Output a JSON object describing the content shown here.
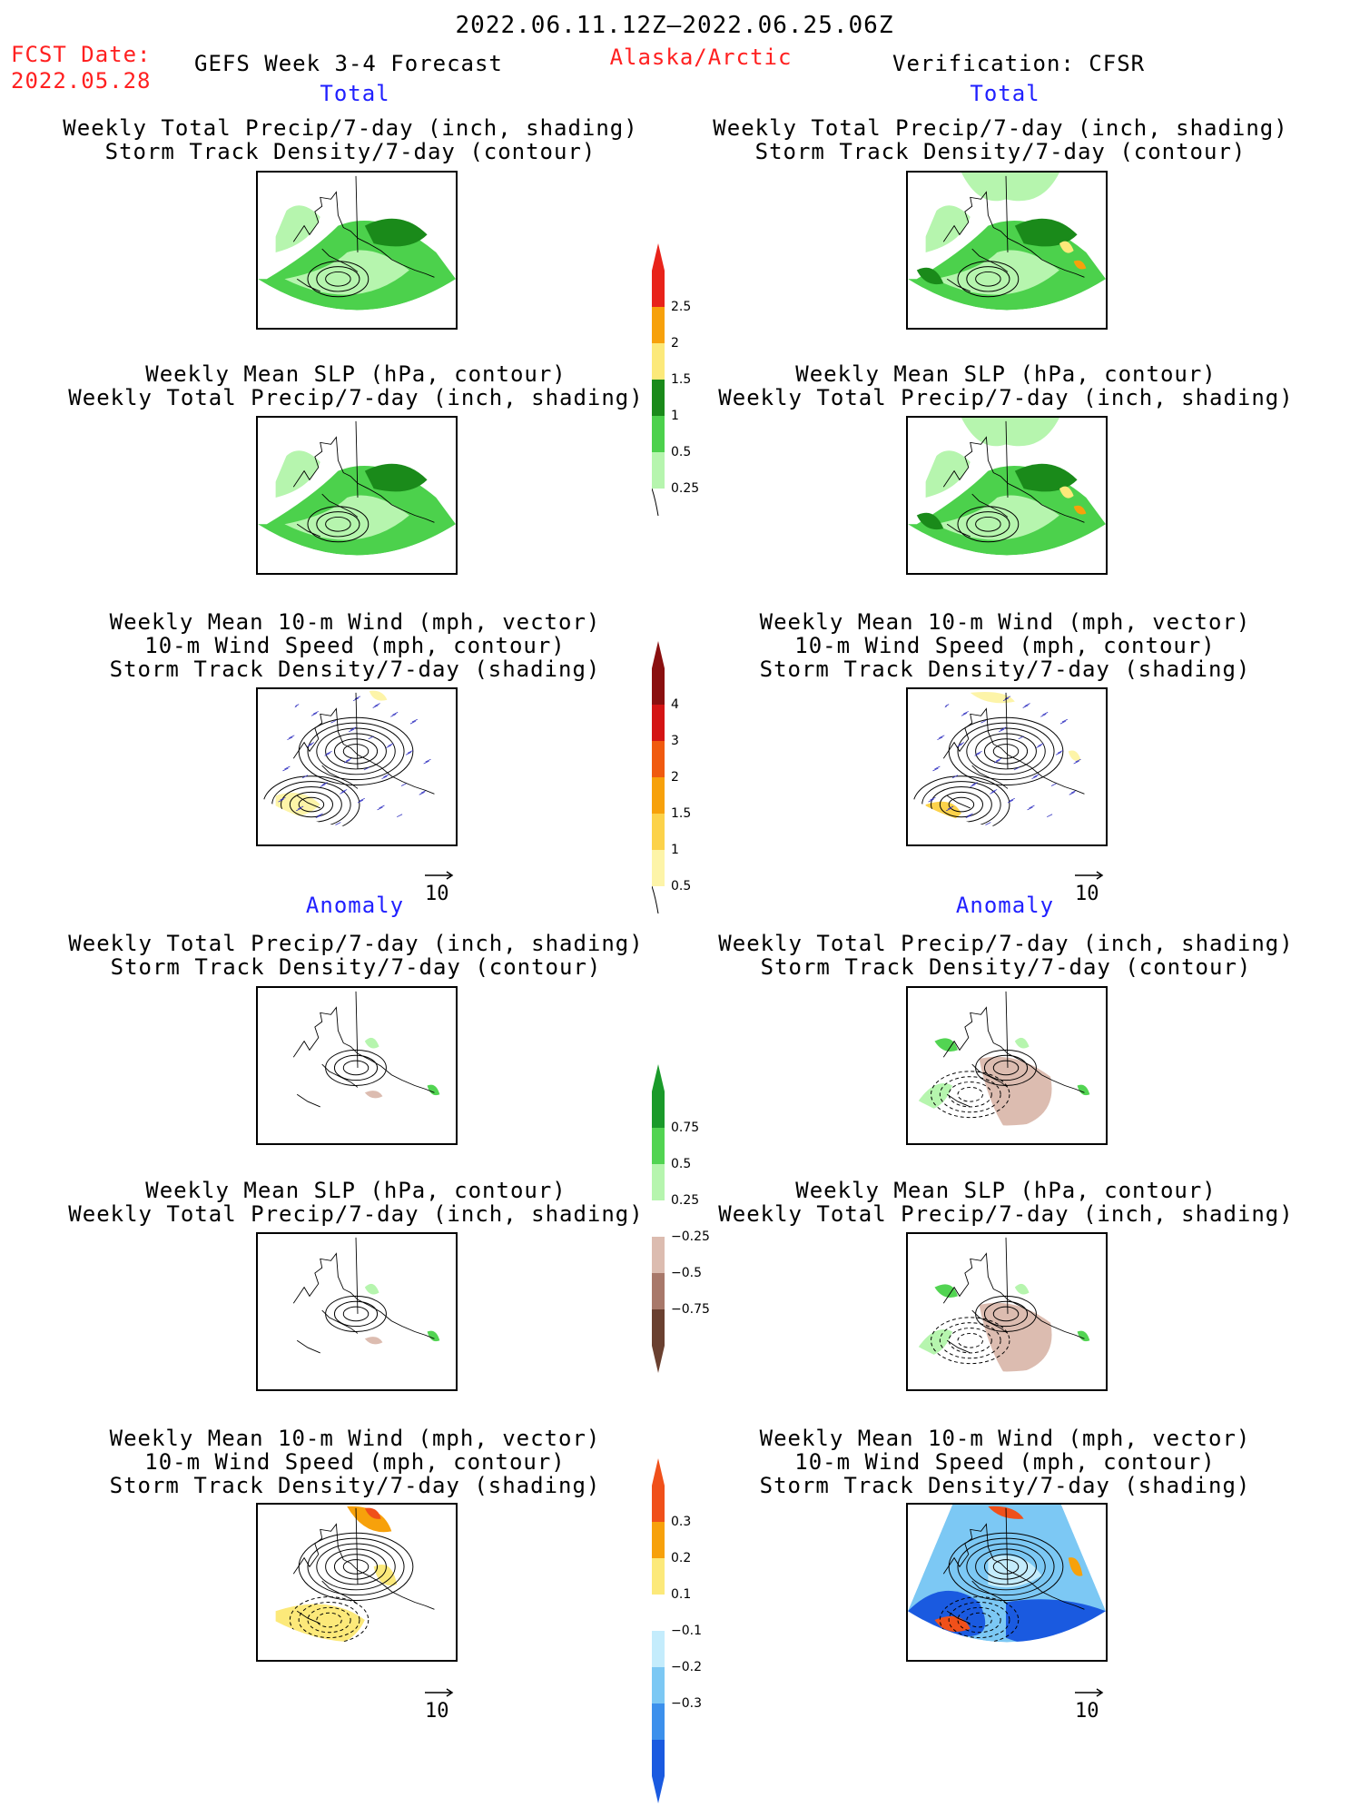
{
  "header": {
    "date_range": "2022.06.11.12Z–2022.06.25.06Z",
    "fcst_label": "FCST Date:",
    "fcst_date": "2022.05.28",
    "model": "GEFS Week 3-4 Forecast",
    "region": "Alaska/Arctic",
    "verification": "Verification: CFSR"
  },
  "sections": {
    "total": "Total",
    "anomaly": "Anomaly"
  },
  "titles": {
    "precip_track": [
      "Weekly Total Precip/7-day (inch, shading)",
      "Storm Track Density/7-day (contour)"
    ],
    "slp_precip": [
      "Weekly Mean SLP (hPa, contour)",
      "Weekly Total Precip/7-day (inch, shading)"
    ],
    "wind": [
      "Weekly Mean 10-m Wind (mph, vector)",
      "10-m Wind Speed (mph, contour)",
      "Storm Track Density/7-day (shading)"
    ]
  },
  "vector_ref": "10",
  "colorbars": {
    "precip_total": {
      "ticks": [
        "2.5",
        "2",
        "1.5",
        "1",
        "0.5",
        "0.25"
      ],
      "colors": [
        "#e8231a",
        "#f7a10b",
        "#fce97a",
        "#1a8a1a",
        "#4cd14c",
        "#b6f5ae"
      ]
    },
    "storm_total": {
      "ticks": [
        "4",
        "3",
        "2",
        "1.5",
        "1",
        "0.5"
      ],
      "colors": [
        "#8a0f0f",
        "#d41414",
        "#f05a0f",
        "#f7a10b",
        "#fcd24a",
        "#fdf4a8"
      ]
    },
    "precip_anom": {
      "ticks": [
        "0.75",
        "0.5",
        "0.25",
        "−0.25",
        "−0.5",
        "−0.75"
      ],
      "colors": [
        "#1a9a2a",
        "#52d452",
        "#b6f5ae",
        "#ffffff",
        "#dcbcb0",
        "#a8786a",
        "#6a4030"
      ]
    },
    "storm_anom": {
      "ticks": [
        "0.3",
        "0.2",
        "0.1",
        "−0.1",
        "−0.2",
        "−0.3"
      ],
      "colors": [
        "#f0501a",
        "#f7a10b",
        "#fce97a",
        "#ffffff",
        "#c4ecfc",
        "#7cc8f4",
        "#3c90ec",
        "#1a5ae0"
      ]
    }
  }
}
